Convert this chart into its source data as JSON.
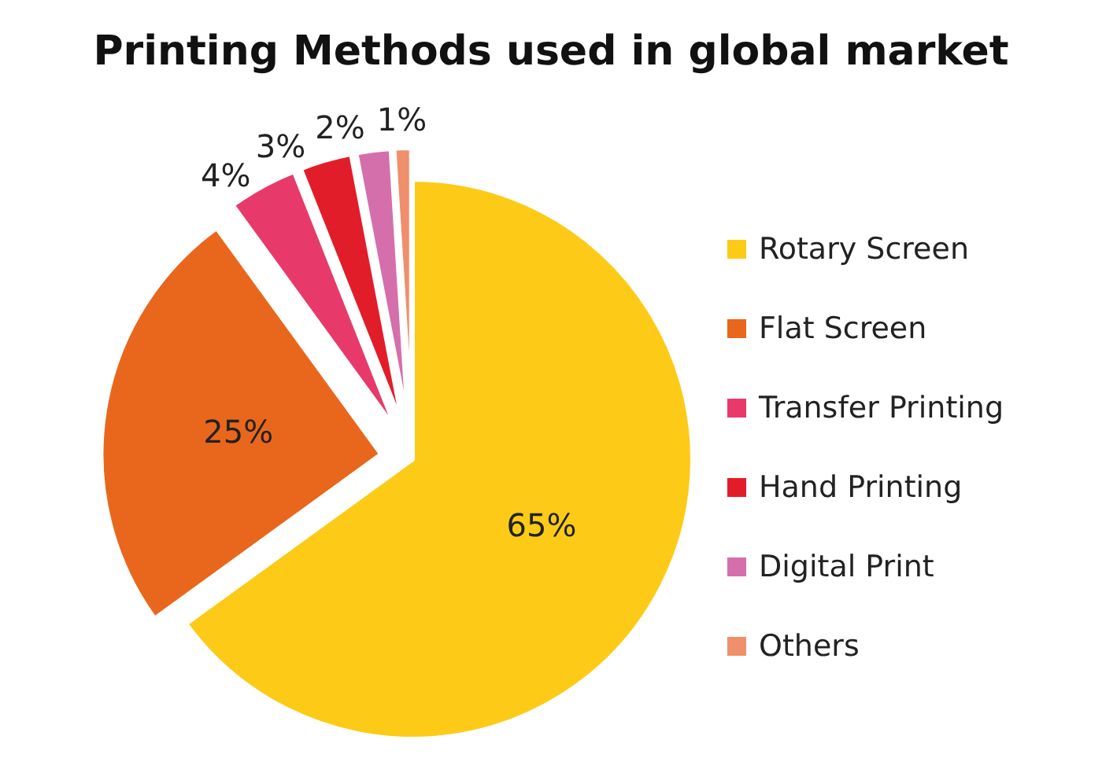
{
  "chart_data": {
    "type": "pie",
    "title": "Printing Methods used in global market",
    "categories": [
      "Rotary Screen",
      "Flat Screen",
      "Transfer Printing",
      "Hand Printing",
      "Digital Print",
      "Others"
    ],
    "values": [
      65,
      25,
      4,
      3,
      2,
      1
    ],
    "value_labels": [
      "65%",
      "25%",
      "4%",
      "3%",
      "2%",
      "1%"
    ],
    "colors": [
      "#fdcb17",
      "#e9671c",
      "#e73a6b",
      "#e21d2a",
      "#d56fab",
      "#f08f6b"
    ],
    "legend": "right"
  }
}
